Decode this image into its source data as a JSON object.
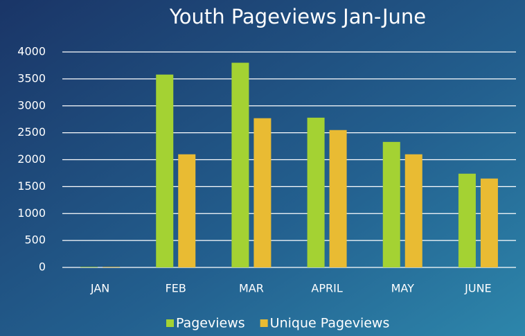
{
  "chart_data": {
    "type": "bar",
    "title": "Youth Pageviews Jan-June",
    "categories": [
      "JAN",
      "FEB",
      "MAR",
      "APRIL",
      "MAY",
      "JUNE"
    ],
    "series": [
      {
        "name": "Pageviews",
        "color": "#a4d233",
        "values": [
          10,
          3580,
          3800,
          2780,
          2330,
          1740
        ]
      },
      {
        "name": "Unique Pageviews",
        "color": "#e9bb33",
        "values": [
          10,
          2100,
          2770,
          2550,
          2100,
          1650
        ]
      }
    ],
    "ylim": [
      0,
      4000
    ],
    "yticks": [
      0,
      500,
      1000,
      1500,
      2000,
      2500,
      3000,
      3500,
      4000
    ],
    "grid": true,
    "legend": "bottom"
  }
}
